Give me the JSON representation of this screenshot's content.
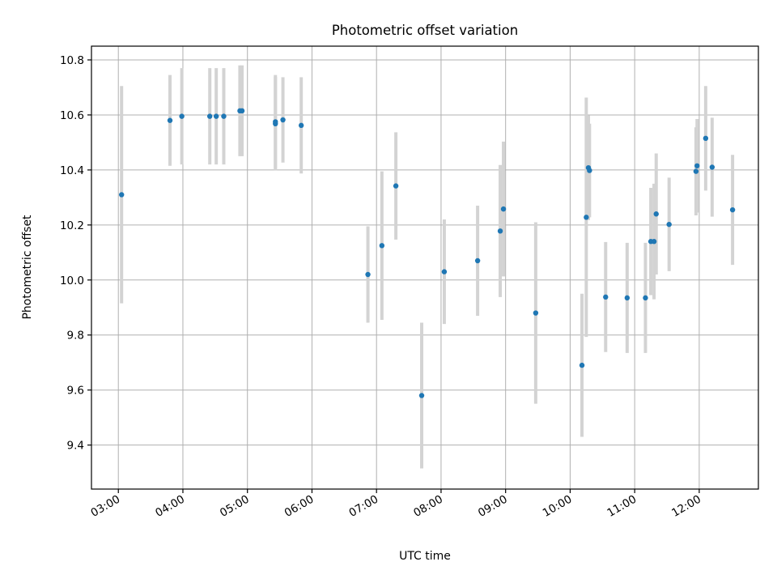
{
  "chart_data": {
    "type": "scatter",
    "title": "Photometric offset variation",
    "xlabel": "UTC time",
    "ylabel": "Photometric offset",
    "xlim": [
      "02:35",
      "12:55"
    ],
    "ylim": [
      9.24,
      10.85
    ],
    "xticks": [
      "03:00",
      "04:00",
      "05:00",
      "06:00",
      "07:00",
      "08:00",
      "09:00",
      "10:00",
      "11:00",
      "12:00"
    ],
    "yticks": [
      "9.4",
      "9.6",
      "9.8",
      "10.0",
      "10.2",
      "10.4",
      "10.6",
      "10.8"
    ],
    "grid": true,
    "colors": {
      "point": "#1f77b4",
      "errorbar": "#d3d3d3",
      "grid": "#b0b0b0"
    },
    "points": [
      {
        "x": "03:03",
        "y": 10.31,
        "err": 0.395
      },
      {
        "x": "03:48",
        "y": 10.58,
        "err": 0.165
      },
      {
        "x": "03:59",
        "y": 10.595,
        "err": 0.175
      },
      {
        "x": "04:25",
        "y": 10.595,
        "err": 0.175
      },
      {
        "x": "04:31",
        "y": 10.595,
        "err": 0.175
      },
      {
        "x": "04:38",
        "y": 10.595,
        "err": 0.175
      },
      {
        "x": "04:53",
        "y": 10.615,
        "err": 0.165
      },
      {
        "x": "04:55",
        "y": 10.615,
        "err": 0.165
      },
      {
        "x": "05:26",
        "y": 10.575,
        "err": 0.17
      },
      {
        "x": "05:26",
        "y": 10.568,
        "err": 0.17
      },
      {
        "x": "05:33",
        "y": 10.582,
        "err": 0.155
      },
      {
        "x": "05:50",
        "y": 10.562,
        "err": 0.175
      },
      {
        "x": "06:52",
        "y": 10.02,
        "err": 0.175
      },
      {
        "x": "07:05",
        "y": 10.125,
        "err": 0.27
      },
      {
        "x": "07:18",
        "y": 10.342,
        "err": 0.195
      },
      {
        "x": "07:42",
        "y": 9.58,
        "err": 0.265
      },
      {
        "x": "08:03",
        "y": 10.03,
        "err": 0.19
      },
      {
        "x": "08:34",
        "y": 10.07,
        "err": 0.2
      },
      {
        "x": "08:55",
        "y": 10.178,
        "err": 0.24
      },
      {
        "x": "08:58",
        "y": 10.258,
        "err": 0.245
      },
      {
        "x": "09:28",
        "y": 9.88,
        "err": 0.33
      },
      {
        "x": "10:11",
        "y": 9.69,
        "err": 0.26
      },
      {
        "x": "10:15",
        "y": 10.228,
        "err": 0.435
      },
      {
        "x": "10:17",
        "y": 10.408,
        "err": 0.19
      },
      {
        "x": "10:18",
        "y": 10.398,
        "err": 0.17
      },
      {
        "x": "10:33",
        "y": 9.938,
        "err": 0.2
      },
      {
        "x": "10:53",
        "y": 9.935,
        "err": 0.2
      },
      {
        "x": "11:10",
        "y": 9.935,
        "err": 0.2
      },
      {
        "x": "11:15",
        "y": 10.14,
        "err": 0.195
      },
      {
        "x": "11:18",
        "y": 10.14,
        "err": 0.21
      },
      {
        "x": "11:20",
        "y": 10.24,
        "err": 0.22
      },
      {
        "x": "11:32",
        "y": 10.202,
        "err": 0.17
      },
      {
        "x": "11:57",
        "y": 10.395,
        "err": 0.16
      },
      {
        "x": "11:58",
        "y": 10.415,
        "err": 0.17
      },
      {
        "x": "12:06",
        "y": 10.515,
        "err": 0.19
      },
      {
        "x": "12:12",
        "y": 10.41,
        "err": 0.18
      },
      {
        "x": "12:31",
        "y": 10.255,
        "err": 0.2
      }
    ]
  }
}
